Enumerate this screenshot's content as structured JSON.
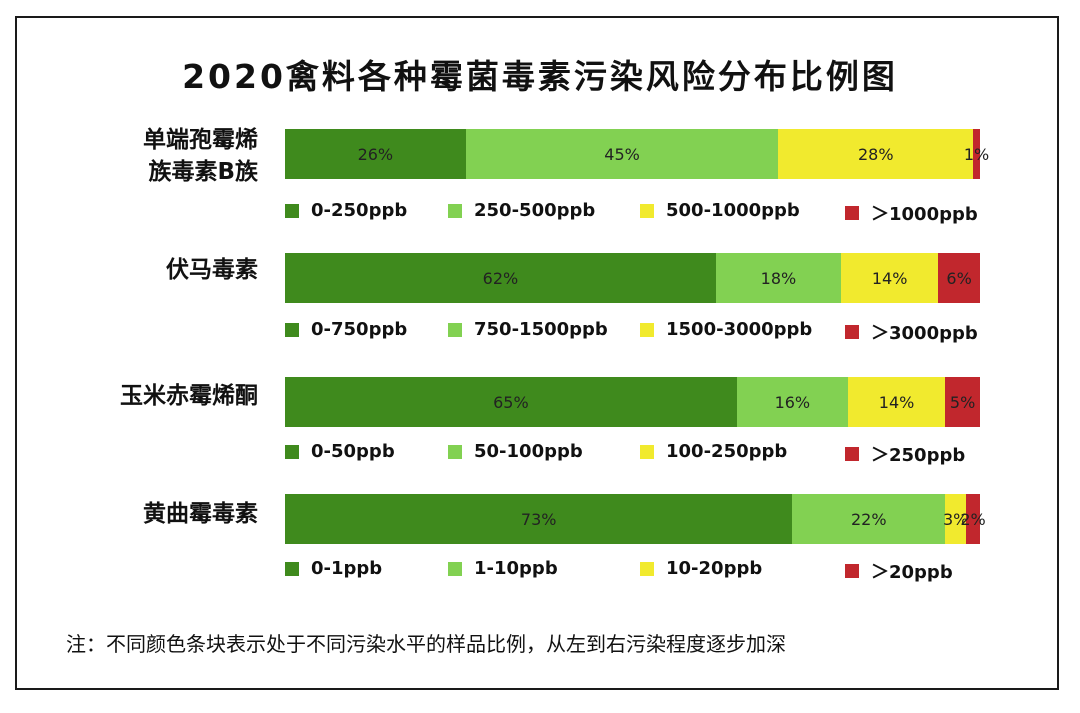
{
  "title": "2020禽料各种霉菌毒素污染风险分布比例图",
  "note": "注：不同颜色条块表示处于不同污染水平的样品比例，从左到右污染程度逐步加深",
  "colors": [
    "#3f8a1d",
    "#82d152",
    "#f1ea2e",
    "#c1272d"
  ],
  "chart_data": {
    "type": "bar",
    "orientation": "horizontal",
    "stacked": true,
    "xlim": [
      0,
      100
    ],
    "rows": [
      {
        "label_lines": [
          "单端孢霉烯",
          "族毒素B族"
        ],
        "values": [
          26,
          45,
          28,
          1
        ],
        "value_labels": [
          "26%",
          "45%",
          "28%",
          "1%"
        ],
        "legend": [
          "0-250ppb",
          "250-500ppb",
          "500-1000ppb",
          "＞1000ppb"
        ]
      },
      {
        "label_lines": [
          "伏马毒素"
        ],
        "values": [
          62,
          18,
          14,
          6
        ],
        "value_labels": [
          "62%",
          "18%",
          "14%",
          "6%"
        ],
        "legend": [
          "0-750ppb",
          "750-1500ppb",
          "1500-3000ppb",
          "＞3000ppb"
        ]
      },
      {
        "label_lines": [
          "玉米赤霉烯酮"
        ],
        "values": [
          65,
          16,
          14,
          5
        ],
        "value_labels": [
          "65%",
          "16%",
          "14%",
          "5%"
        ],
        "legend": [
          "0-50ppb",
          "50-100ppb",
          "100-250ppb",
          "＞250ppb"
        ]
      },
      {
        "label_lines": [
          "黄曲霉毒素"
        ],
        "values": [
          73,
          22,
          3,
          2
        ],
        "value_labels": [
          "73%",
          "22%",
          "3%",
          "2%"
        ],
        "legend": [
          "0-1ppb",
          "1-10ppb",
          "10-20ppb",
          "＞20ppb"
        ]
      }
    ]
  }
}
